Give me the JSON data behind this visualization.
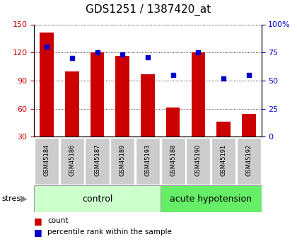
{
  "title": "GDS1251 / 1387420_at",
  "categories": [
    "GSM45184",
    "GSM45186",
    "GSM45187",
    "GSM45189",
    "GSM45193",
    "GSM45188",
    "GSM45190",
    "GSM45191",
    "GSM45192"
  ],
  "counts": [
    141,
    100,
    120,
    116,
    97,
    61,
    120,
    46,
    54
  ],
  "percentiles": [
    80,
    70,
    75,
    73,
    71,
    55,
    75,
    52,
    55
  ],
  "bar_color": "#cc0000",
  "dot_color": "#0000cc",
  "ylim_left": [
    30,
    150
  ],
  "ylim_right": [
    0,
    100
  ],
  "yticks_left": [
    30,
    60,
    90,
    120,
    150
  ],
  "yticks_right": [
    0,
    25,
    50,
    75,
    100
  ],
  "ytick_labels_right": [
    "0",
    "25",
    "50",
    "75",
    "100%"
  ],
  "control_n": 5,
  "acute_n": 4,
  "control_label": "control",
  "acute_label": "acute hypotension",
  "stress_label": "stress",
  "legend_count": "count",
  "legend_percentile": "percentile rank within the sample",
  "bar_color_left_axis": "#cc0000",
  "dot_color_right_axis": "#0000cc",
  "control_bg": "#ccffcc",
  "acute_bg": "#66ee66",
  "tick_bg": "#cccccc",
  "title_fontsize": 11,
  "tick_fontsize": 8,
  "cat_fontsize": 6,
  "group_fontsize": 9,
  "legend_fontsize": 7.5,
  "stress_fontsize": 8
}
